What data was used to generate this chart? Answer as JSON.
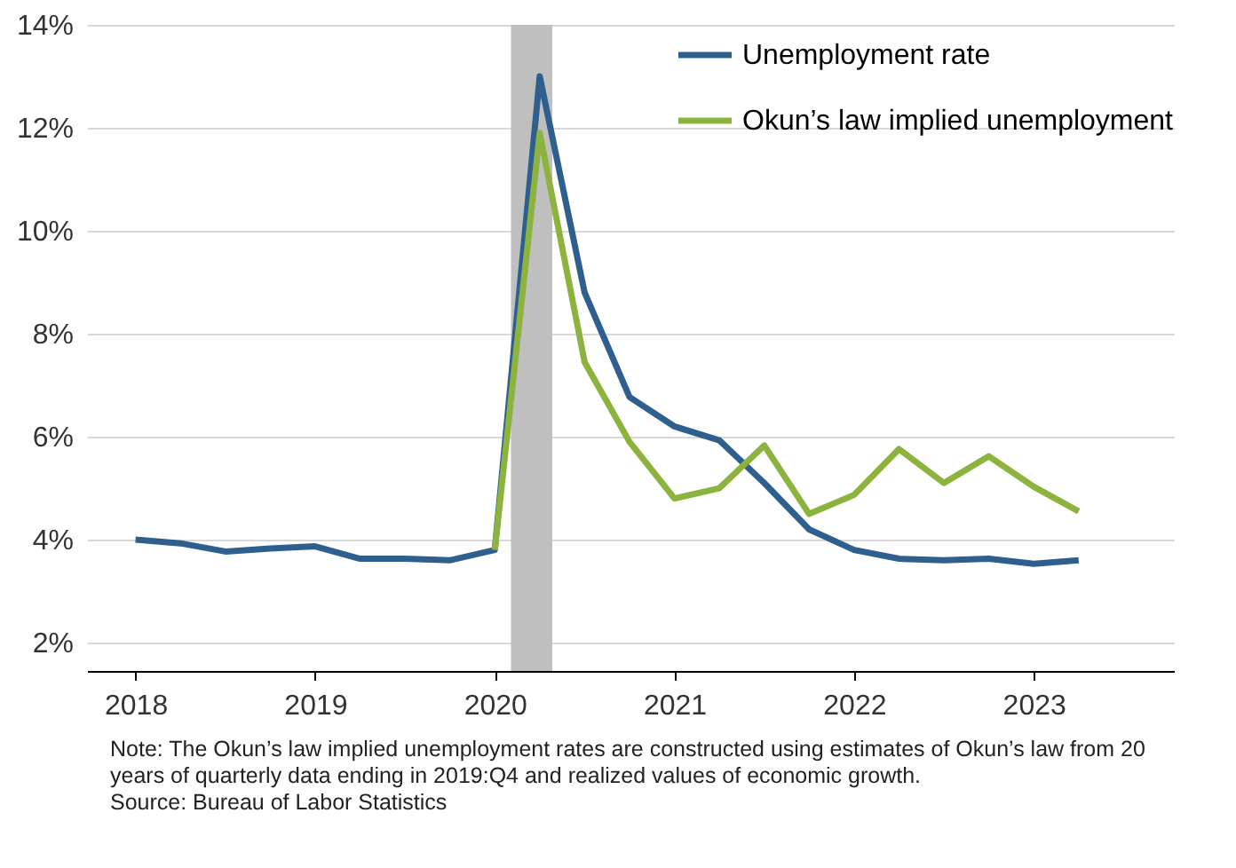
{
  "chart_data": {
    "type": "line",
    "x": [
      2018,
      2018.25,
      2018.5,
      2018.75,
      2019,
      2019.25,
      2019.5,
      2019.75,
      2020,
      2020.25,
      2020.5,
      2020.75,
      2021,
      2021.25,
      2021.5,
      2021.75,
      2022,
      2022.25,
      2022.5,
      2022.75,
      2023,
      2023.25
    ],
    "series": [
      {
        "name": "Unemployment rate",
        "color": "#2f5f8f",
        "values": [
          4.0,
          3.93,
          3.77,
          3.83,
          3.87,
          3.63,
          3.63,
          3.6,
          3.8,
          13.0,
          8.8,
          6.77,
          6.2,
          5.93,
          5.1,
          4.2,
          3.8,
          3.63,
          3.6,
          3.63,
          3.53,
          3.6
        ]
      },
      {
        "name": "Okun’s law implied unemployment",
        "color": "#8db33f",
        "x": [
          2020,
          2020.25,
          2020.5,
          2020.75,
          2021,
          2021.25,
          2021.5,
          2021.75,
          2022,
          2022.25,
          2022.5,
          2022.75,
          2023,
          2023.25
        ],
        "values": [
          3.8,
          11.9,
          7.45,
          5.9,
          4.8,
          5.0,
          5.83,
          4.5,
          4.87,
          5.76,
          5.1,
          5.62,
          5.03,
          4.55
        ]
      }
    ],
    "xlim": [
      2017.73,
      2023.78
    ],
    "xticks": [
      2018,
      2019,
      2020,
      2021,
      2022,
      2023
    ],
    "ylim": [
      1.45,
      14
    ],
    "yticks": [
      {
        "value": 2,
        "label": "2%"
      },
      {
        "value": 4,
        "label": "4%"
      },
      {
        "value": 6,
        "label": "6%"
      },
      {
        "value": 8,
        "label": "8%"
      },
      {
        "value": 10,
        "label": "10%"
      },
      {
        "value": 12,
        "label": "12%"
      },
      {
        "value": 14,
        "label": "14%"
      }
    ],
    "bands": [
      {
        "axis": "x",
        "from": 2020.09,
        "to": 2020.32,
        "color": "#bfbfbf"
      }
    ],
    "grid": "y",
    "legend": "top right",
    "annotations": [
      "Note: The Okun’s law implied unemployment rates are constructed using estimates of Okun’s law from 20 years of quarterly data ending in 2019:Q4 and realized values of economic growth.",
      "Source: Bureau of Labor Statistics"
    ]
  }
}
